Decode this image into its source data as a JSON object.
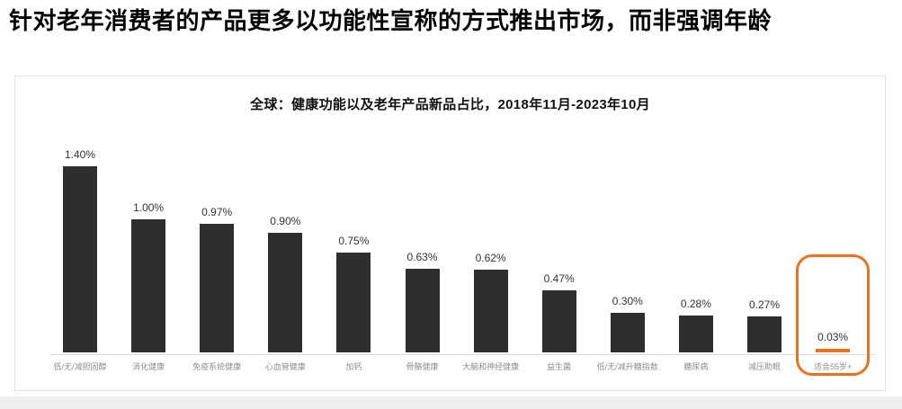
{
  "page": {
    "title": "针对老年消费者的产品更多以功能性宣称的方式推出市场，而非强调年龄"
  },
  "chart_data": {
    "type": "bar",
    "title": "全球：健康功能以及老年产品新品占比，2018年11月-2023年10月",
    "categories": [
      "低/无/减胆固醇",
      "消化健康",
      "免疫系统健康",
      "心血管健康",
      "加钙",
      "骨骼健康",
      "大脑和神经健康",
      "益生菌",
      "低/无/减升糖指数",
      "糖尿病",
      "减压助眠",
      "适合55岁+"
    ],
    "values": [
      1.4,
      1.0,
      0.97,
      0.9,
      0.75,
      0.63,
      0.62,
      0.47,
      0.3,
      0.28,
      0.27,
      0.03
    ],
    "value_labels": [
      "1.40%",
      "1.00%",
      "0.97%",
      "0.90%",
      "0.75%",
      "0.63%",
      "0.62%",
      "0.47%",
      "0.30%",
      "0.28%",
      "0.27%",
      "0.03%"
    ],
    "xlabel": "",
    "ylabel": "",
    "ylim": [
      0,
      1.5
    ],
    "grid": false,
    "y_axis_visible": false,
    "data_labels_visible": true,
    "legend": null,
    "bar_color": "#2e2e2e",
    "highlight": {
      "index": 11,
      "category": "适合55岁+",
      "value_label": "0.03%",
      "bar_color": "#e8731e",
      "box_color": "#e8731e",
      "box": true
    }
  },
  "colors": {
    "accent_orange": "#e8731e",
    "bar_dark": "#2e2e2e",
    "axis_line": "#dcdcdc",
    "category_label": "#8e8e8e",
    "value_label": "#333333",
    "card_border": "#e2e2e2",
    "background": "#ffffff",
    "bottom_strip": "#efefef"
  }
}
